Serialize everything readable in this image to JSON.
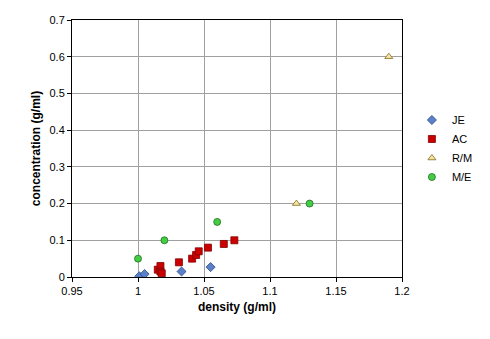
{
  "chart_data": {
    "type": "scatter",
    "x_label": "density (g/ml)",
    "y_label": "concentration (g/ml)",
    "xlim": [
      0.95,
      1.2
    ],
    "xticks": [
      0.95,
      1,
      1.05,
      1.1,
      1.15,
      1.2
    ],
    "ylim": [
      0,
      0.7
    ],
    "yticks": [
      0,
      0.1,
      0.2,
      0.3,
      0.4,
      0.5,
      0.6,
      0.7
    ],
    "grid": true,
    "legend": "right",
    "series": [
      {
        "name": "JE",
        "color": "#5a80c8",
        "marker": "diamond",
        "x": [
          1.001,
          1.005,
          1.033,
          1.055
        ],
        "values": [
          0.002,
          0.008,
          0.015,
          0.027
        ]
      },
      {
        "name": "AC",
        "color": "#cc0000",
        "marker": "square",
        "x": [
          1.015,
          1.017,
          1.017,
          1.018,
          1.031,
          1.041,
          1.044,
          1.046,
          1.053,
          1.065,
          1.073
        ],
        "values": [
          0.02,
          0.03,
          0.015,
          0.01,
          0.04,
          0.05,
          0.06,
          0.07,
          0.08,
          0.09,
          0.1
        ]
      },
      {
        "name": "R/M",
        "color": "#f5e6a0",
        "marker": "triangle",
        "x": [
          1.12,
          1.19
        ],
        "values": [
          0.2,
          0.6
        ]
      },
      {
        "name": "M/E",
        "color": "#44cc44",
        "marker": "circle",
        "x": [
          1.0,
          1.02,
          1.06,
          1.13
        ],
        "values": [
          0.05,
          0.1,
          0.15,
          0.2
        ]
      }
    ]
  }
}
